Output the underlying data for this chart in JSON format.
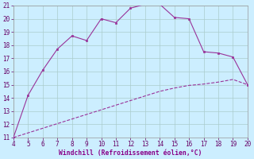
{
  "xlabel": "Windchill (Refroidissement éolien,°C)",
  "x_main": [
    4,
    5,
    6,
    7,
    8,
    9,
    10,
    11,
    12,
    13,
    14,
    15,
    16,
    17,
    18,
    19,
    20
  ],
  "y_main": [
    11.0,
    14.2,
    16.1,
    17.7,
    18.7,
    18.35,
    20.0,
    19.7,
    20.8,
    21.1,
    21.1,
    20.1,
    20.0,
    17.5,
    17.4,
    17.1,
    15.0
  ],
  "x_ref": [
    4,
    5,
    6,
    7,
    8,
    9,
    10,
    11,
    12,
    13,
    14,
    15,
    16,
    17,
    18,
    19,
    20
  ],
  "y_ref": [
    11.0,
    11.35,
    11.7,
    12.05,
    12.4,
    12.75,
    13.1,
    13.45,
    13.8,
    14.15,
    14.5,
    14.75,
    14.95,
    15.05,
    15.2,
    15.4,
    15.0
  ],
  "line_color": "#993399",
  "marker_color": "#993399",
  "bg_color": "#cceeff",
  "grid_color": "#aacccc",
  "ylim": [
    11,
    21
  ],
  "xlim": [
    4,
    20
  ],
  "yticks": [
    11,
    12,
    13,
    14,
    15,
    16,
    17,
    18,
    19,
    20,
    21
  ],
  "xticks": [
    4,
    5,
    6,
    7,
    8,
    9,
    10,
    11,
    12,
    13,
    14,
    15,
    16,
    17,
    18,
    19,
    20
  ],
  "tick_fontsize": 5.5,
  "xlabel_fontsize": 5.8,
  "xlabel_color": "#880088"
}
